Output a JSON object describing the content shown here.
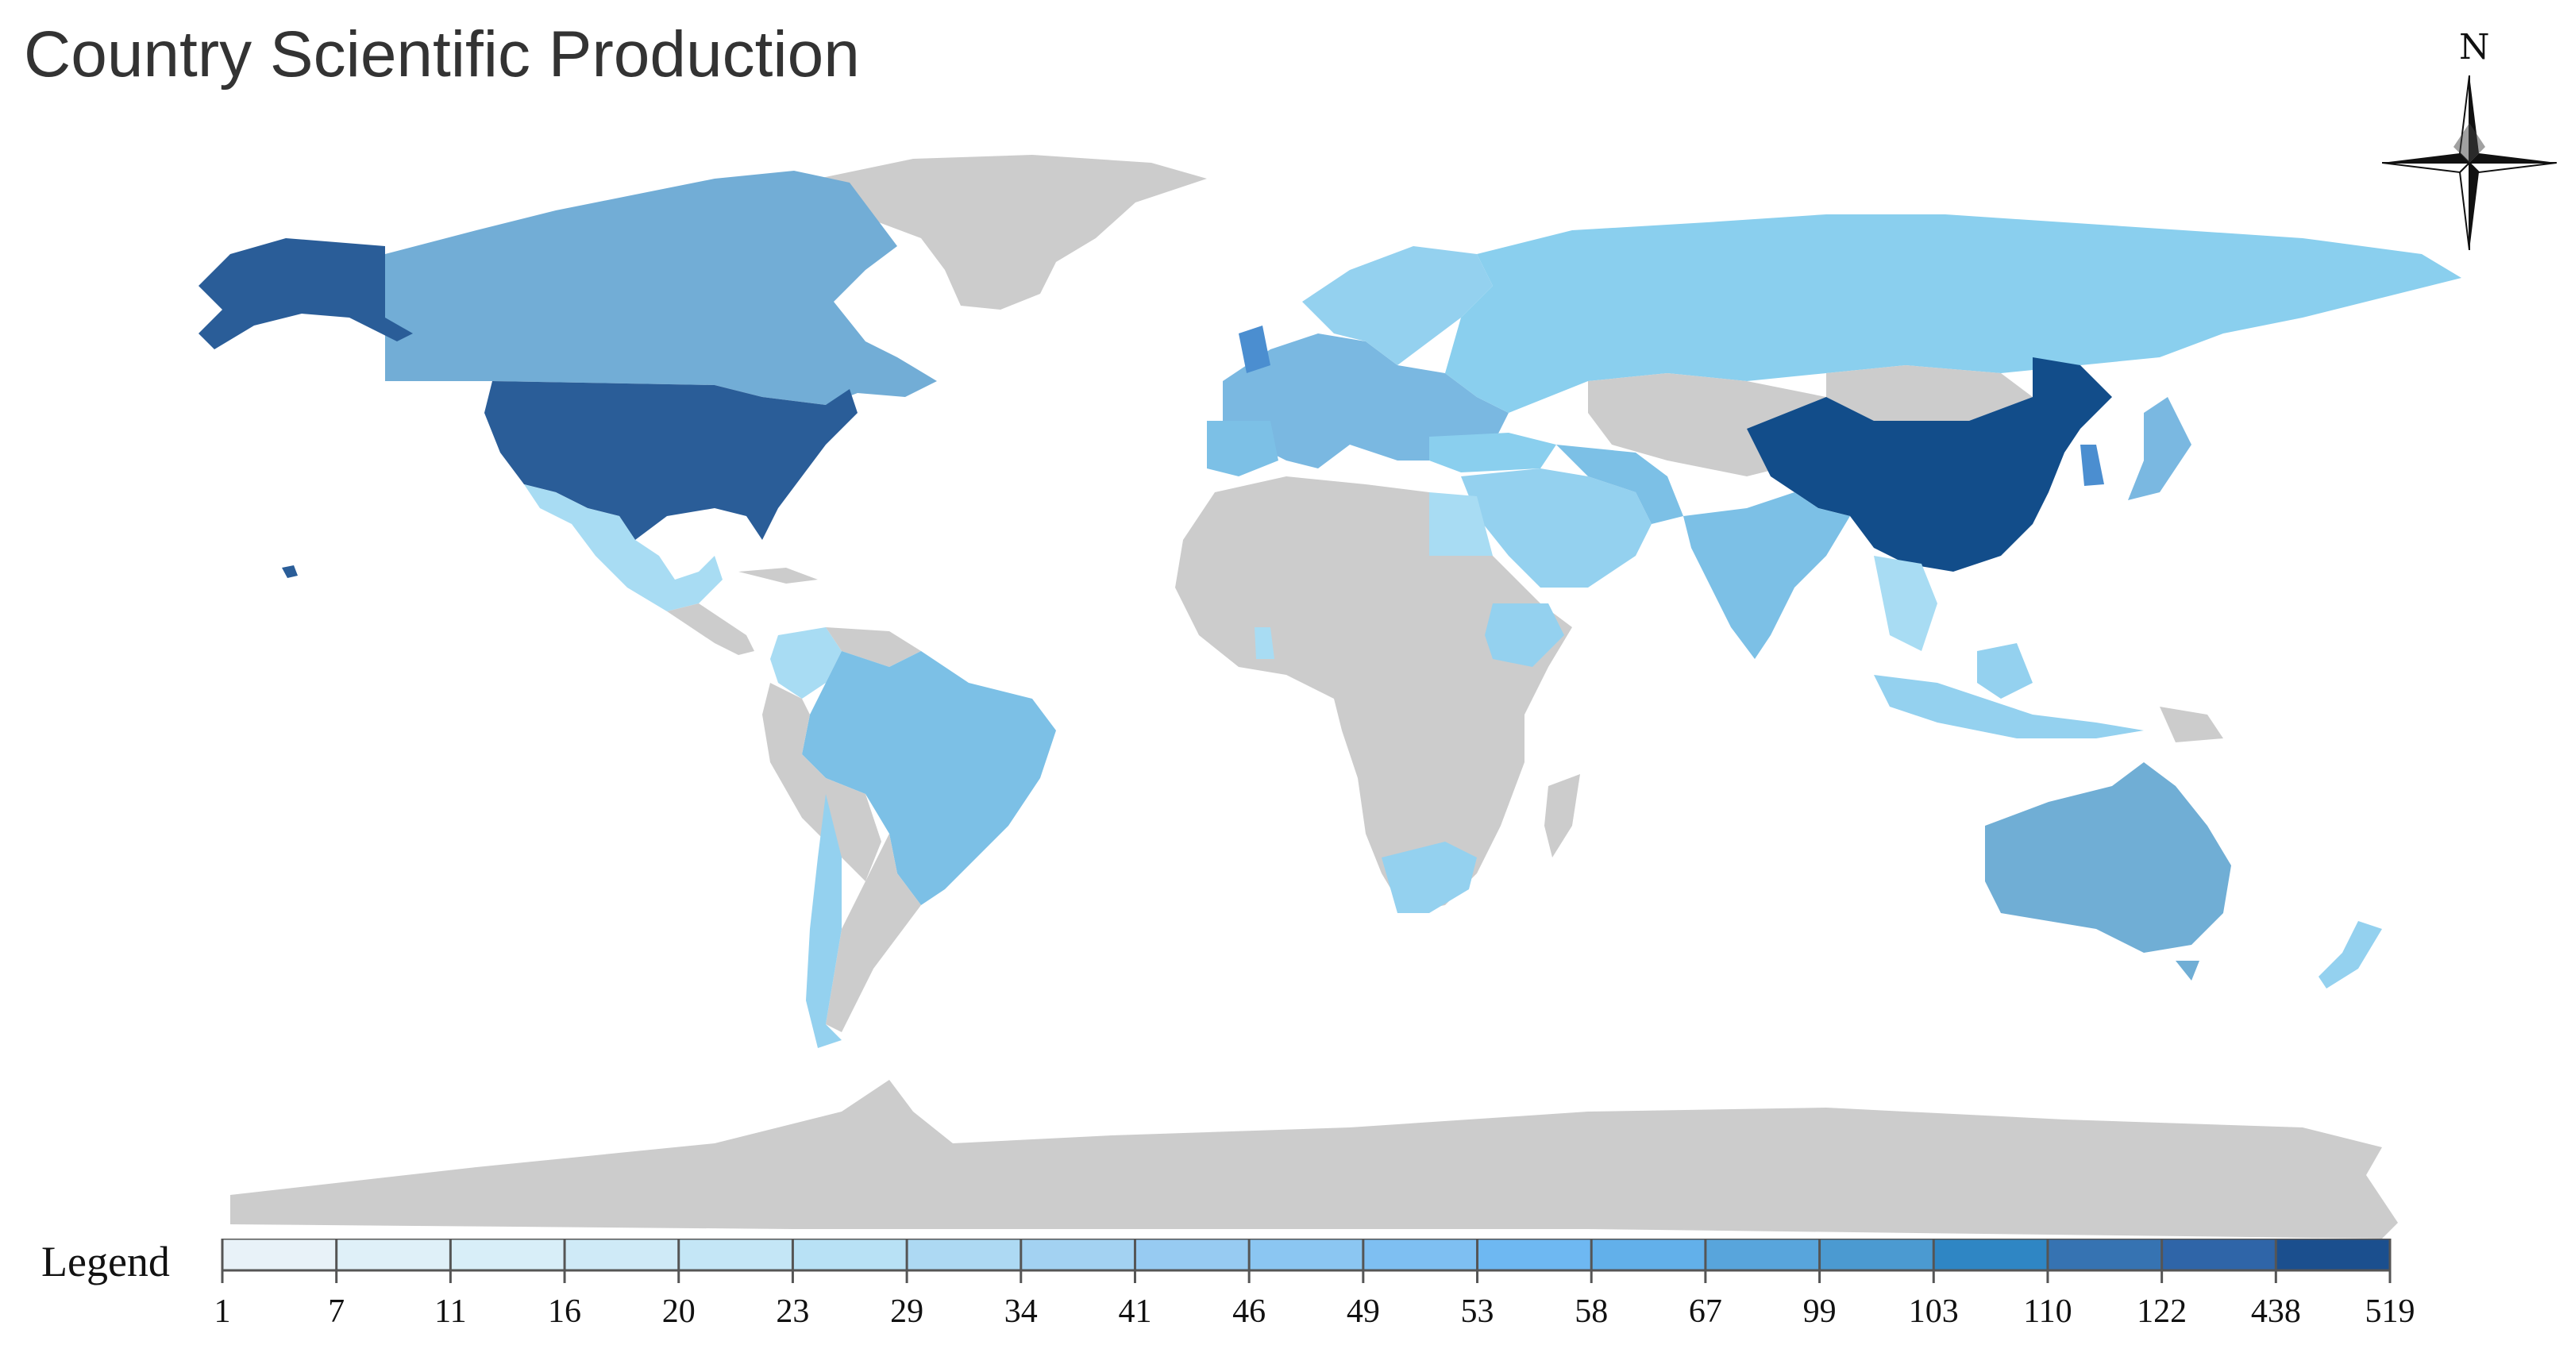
{
  "title": "Country Scientific Production",
  "compass": {
    "north_label": "N",
    "icon": "compass-rose-icon"
  },
  "legend": {
    "title": "Legend",
    "breaks": [
      "1",
      "7",
      "11",
      "16",
      "20",
      "23",
      "29",
      "34",
      "41",
      "46",
      "49",
      "53",
      "58",
      "67",
      "99",
      "103",
      "110",
      "122",
      "438",
      "519"
    ],
    "colors": [
      "#e8f2f8",
      "#dff0f8",
      "#d8eef8",
      "#cfeaf7",
      "#c4e6f6",
      "#b8e1f5",
      "#add9f3",
      "#a3d2f2",
      "#97cbf2",
      "#8bc6f2",
      "#7ebff2",
      "#6eb8f2",
      "#62b0ea",
      "#58a5dc",
      "#4b9ad1",
      "#2f86c4",
      "#3673b2",
      "#2f65a8",
      "#1b4f8e"
    ]
  },
  "colors": {
    "no_data": "#cccccc",
    "china": "#124d8a",
    "usa": "#2a5d98",
    "canada": "#72add6",
    "australia": "#70aed5",
    "brazil": "#7cc0e6",
    "russia": "#8acfee",
    "europe": "#7ab8e1",
    "mid": "#94d1ef",
    "light": "#a8dcf3"
  }
}
